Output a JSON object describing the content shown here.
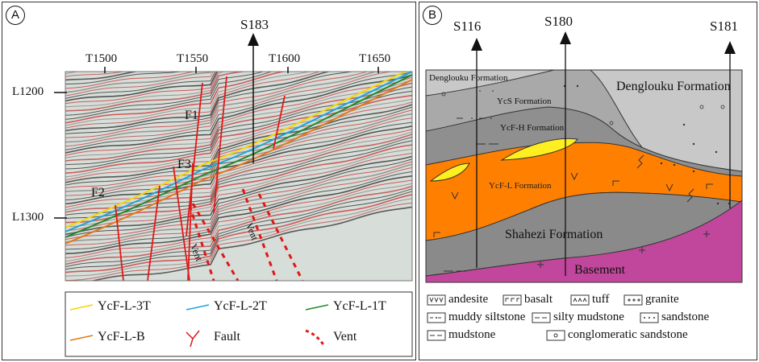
{
  "panel_a": {
    "label": "A",
    "well": "S183",
    "traces": [
      "T1500",
      "T1550",
      "T1600",
      "T1650"
    ],
    "lines": [
      "L1200",
      "L1300"
    ],
    "faults": [
      "F1",
      "F2",
      "F3"
    ],
    "vent_label": "Vent",
    "legend": [
      {
        "label": "YcF-L-3T",
        "color": "#f2d800",
        "kind": "line"
      },
      {
        "label": "YcF-L-2T",
        "color": "#1aa6d8",
        "kind": "line"
      },
      {
        "label": "YcF-L-1T",
        "color": "#1f8a2c",
        "kind": "line"
      },
      {
        "label": "YcF-L-B",
        "color": "#e07a1a",
        "kind": "line"
      },
      {
        "label": "Fault",
        "color": "#e01818",
        "kind": "fault"
      },
      {
        "label": "Vent",
        "color": "#e01818",
        "kind": "vent"
      }
    ]
  },
  "panel_b": {
    "label": "B",
    "wells": [
      "S116",
      "S180",
      "S181"
    ],
    "formations": {
      "denglouku_left": "Denglouku Formation",
      "denglouku_right": "Denglouku Formation",
      "ycs": "YcS Formation",
      "ycfh": "YcF-H Formation",
      "ycfl": "YcF-L Formation",
      "shahezi": "Shahezi Formation",
      "basement": "Basement"
    },
    "colors": {
      "denglouku": "#c8c8c8",
      "ycs": "#a6a6a6",
      "ycfh": "#8c8c8c",
      "ycfl": "#ff7f00",
      "shahezi": "#8a8a8a",
      "basement": "#c0479c",
      "tuff": "#ffee20"
    },
    "legend": [
      {
        "symbol": "vvv",
        "label": "andesite"
      },
      {
        "symbol": "basalt",
        "label": "basalt"
      },
      {
        "symbol": "tuff",
        "label": "tuff"
      },
      {
        "symbol": "+++",
        "label": "granite"
      },
      {
        "symbol": "muddy-silt",
        "label": "muddy siltstone"
      },
      {
        "symbol": "silty-mud",
        "label": "silty mudstone"
      },
      {
        "symbol": "sand",
        "label": "sandstone"
      },
      {
        "symbol": "mud",
        "label": "mudstone"
      },
      {
        "symbol": "conglo",
        "label": "conglomeratic sandstone"
      }
    ]
  }
}
